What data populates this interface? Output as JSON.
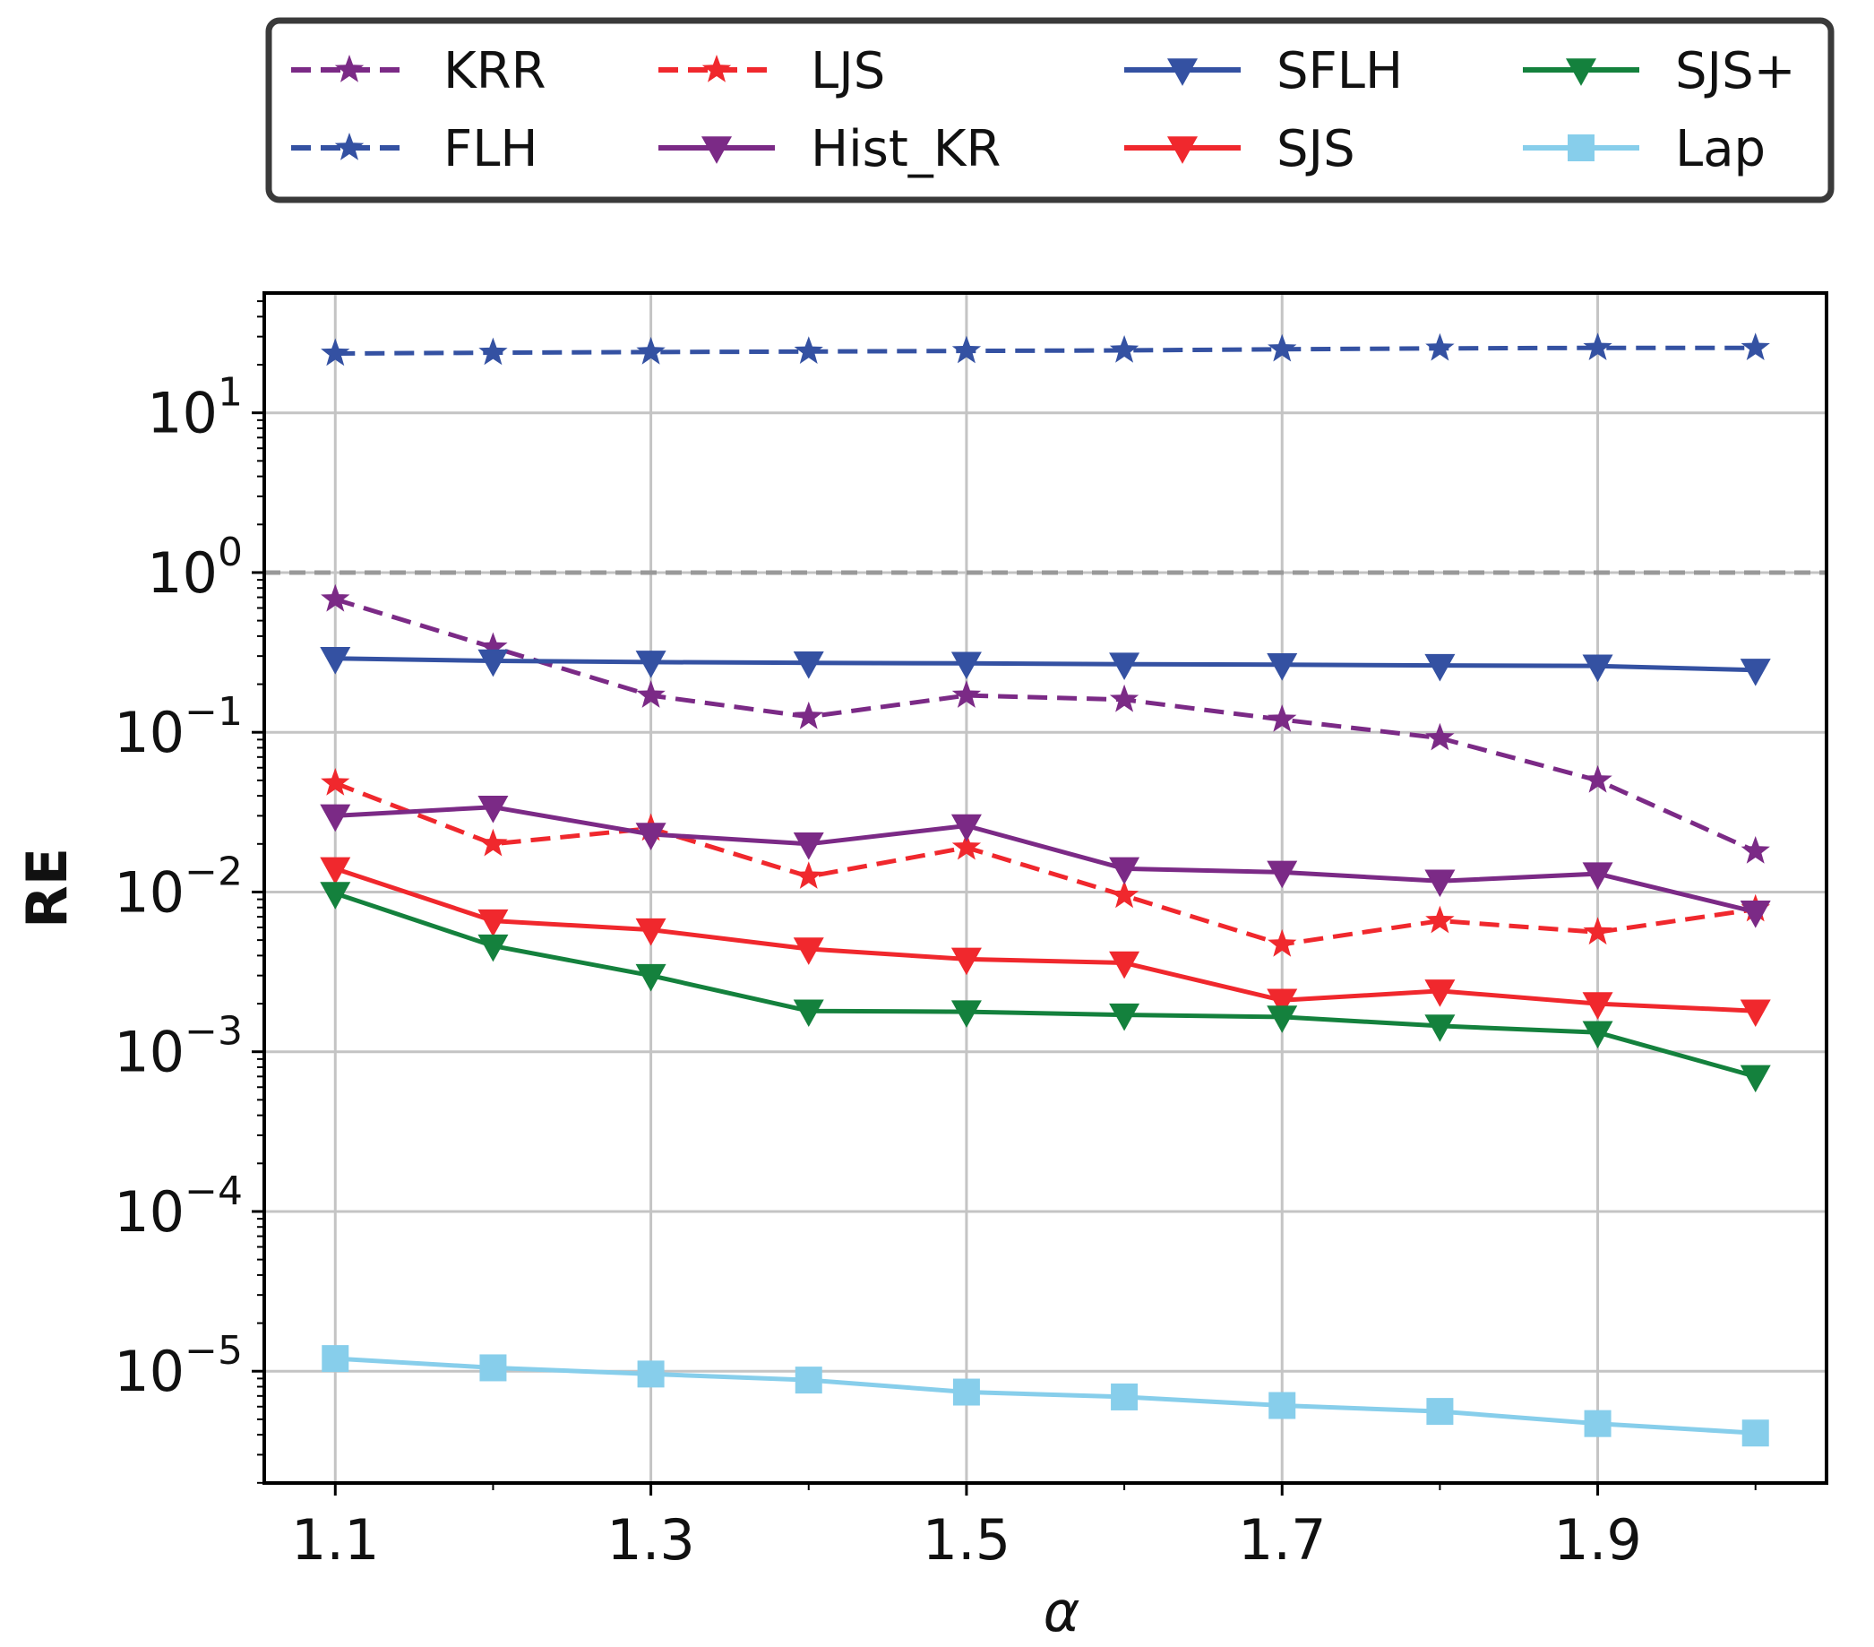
{
  "chart_data": {
    "type": "line",
    "title": "",
    "xlabel": "α",
    "ylabel": "RE",
    "yscale": "log",
    "xlim": [
      1.055,
      2.045
    ],
    "ylim_log10": [
      -5.7,
      1.75
    ],
    "grid": true,
    "legend_position": "top, outside plot, 4 columns",
    "reference_line": {
      "y": 1,
      "style": "dashed",
      "color": "#999999"
    },
    "x": [
      1.1,
      1.2,
      1.3,
      1.4,
      1.5,
      1.6,
      1.7,
      1.8,
      1.9,
      2.0
    ],
    "x_ticks": [
      {
        "value": 1.1,
        "label": "1.1"
      },
      {
        "value": 1.3,
        "label": "1.3"
      },
      {
        "value": 1.5,
        "label": "1.5"
      },
      {
        "value": 1.7,
        "label": "1.7"
      },
      {
        "value": 1.9,
        "label": "1.9"
      }
    ],
    "y_ticks": [
      {
        "exp": 1,
        "base": "10",
        "sup": "1"
      },
      {
        "exp": 0,
        "base": "10",
        "sup": "0"
      },
      {
        "exp": -1,
        "base": "10",
        "sup": "−1"
      },
      {
        "exp": -2,
        "base": "10",
        "sup": "−2"
      },
      {
        "exp": -3,
        "base": "10",
        "sup": "−3"
      },
      {
        "exp": -4,
        "base": "10",
        "sup": "−4"
      },
      {
        "exp": -5,
        "base": "10",
        "sup": "−5"
      }
    ],
    "series": [
      {
        "name": "KRR",
        "color": "#7b2a86",
        "dash": true,
        "marker": "star",
        "values": [
          0.68,
          0.34,
          0.17,
          0.125,
          0.17,
          0.16,
          0.12,
          0.092,
          0.05,
          0.018
        ]
      },
      {
        "name": "FLH",
        "color": "#3451a2",
        "dash": true,
        "marker": "star",
        "values": [
          23.5,
          23.8,
          24.0,
          24.2,
          24.4,
          24.6,
          25.0,
          25.3,
          25.5,
          25.5
        ]
      },
      {
        "name": "LJS",
        "color": "#f0282d",
        "dash": true,
        "marker": "star",
        "values": [
          0.048,
          0.02,
          0.025,
          0.0125,
          0.019,
          0.0095,
          0.0047,
          0.0066,
          0.0056,
          0.0078
        ]
      },
      {
        "name": "Hist_KR",
        "color": "#7b2a86",
        "dash": false,
        "marker": "triangle-down",
        "values": [
          0.03,
          0.034,
          0.023,
          0.02,
          0.026,
          0.014,
          0.0133,
          0.0117,
          0.013,
          0.0075
        ]
      },
      {
        "name": "SFLH",
        "color": "#3451a2",
        "dash": false,
        "marker": "triangle-down",
        "values": [
          0.29,
          0.28,
          0.275,
          0.272,
          0.27,
          0.267,
          0.265,
          0.262,
          0.26,
          0.245
        ]
      },
      {
        "name": "SJS",
        "color": "#f0282d",
        "dash": false,
        "marker": "triangle-down",
        "values": [
          0.014,
          0.0066,
          0.0058,
          0.0044,
          0.0038,
          0.0036,
          0.0021,
          0.0024,
          0.002,
          0.0018
        ]
      },
      {
        "name": "SJS+",
        "color": "#14813d",
        "dash": false,
        "marker": "triangle-down",
        "values": [
          0.0098,
          0.0046,
          0.003,
          0.0018,
          0.00178,
          0.0017,
          0.00165,
          0.00145,
          0.00132,
          0.0007
        ]
      },
      {
        "name": "Lap",
        "color": "#87ceeb",
        "dash": false,
        "marker": "square",
        "values": [
          1.2e-05,
          1.05e-05,
          9.6e-06,
          8.8e-06,
          7.4e-06,
          6.9e-06,
          6.1e-06,
          5.6e-06,
          4.7e-06,
          4.1e-06
        ]
      }
    ]
  }
}
